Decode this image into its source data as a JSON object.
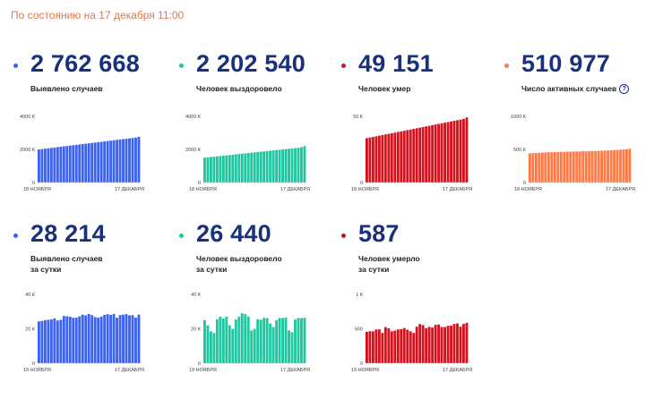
{
  "header": {
    "date_text": "По состоянию на 17 декабря 11:00"
  },
  "cards": [
    {
      "value": "2 762 668",
      "label_lines": [
        "Выявлено случаев"
      ],
      "color": "#3b63f0",
      "show_info": false,
      "chart_data": {
        "type": "bar",
        "y_ticks": [
          "4000 К",
          "2000 К",
          "0"
        ],
        "ylim": [
          0,
          4000
        ],
        "x_start_label": "18 НОЯБРЯ",
        "x_end_label": "17 ДЕКАБРЯ",
        "values": [
          2000,
          2023,
          2046,
          2069,
          2092,
          2115,
          2138,
          2161,
          2184,
          2207,
          2230,
          2253,
          2276,
          2299,
          2322,
          2345,
          2368,
          2391,
          2414,
          2437,
          2460,
          2483,
          2506,
          2529,
          2552,
          2575,
          2598,
          2621,
          2644,
          2667,
          2690,
          2713,
          2763
        ]
      }
    },
    {
      "value": "2 202 540",
      "label_lines": [
        "Человек выздоровело"
      ],
      "color": "#1fc7a0",
      "show_info": false,
      "chart_data": {
        "type": "bar",
        "y_ticks": [
          "4000 К",
          "2000 К",
          "0"
        ],
        "ylim": [
          0,
          4000
        ],
        "x_start_label": "18 НОЯБРЯ",
        "x_end_label": "17 ДЕКАБРЯ",
        "values": [
          1500,
          1520,
          1540,
          1560,
          1580,
          1600,
          1620,
          1640,
          1660,
          1680,
          1700,
          1720,
          1740,
          1760,
          1780,
          1800,
          1820,
          1840,
          1860,
          1880,
          1900,
          1920,
          1940,
          1960,
          1980,
          2000,
          2020,
          2040,
          2060,
          2080,
          2100,
          2130,
          2203
        ]
      }
    },
    {
      "value": "49 151",
      "label_lines": [
        "Человек умер"
      ],
      "color": "#d8121d",
      "show_info": false,
      "chart_data": {
        "type": "bar",
        "y_ticks": [
          "50 К",
          "0"
        ],
        "ylim": [
          0,
          50
        ],
        "x_start_label": "18 НОЯБРЯ",
        "x_end_label": "17 ДЕКАБРЯ",
        "values": [
          33.5,
          34,
          34.4,
          34.9,
          35.4,
          35.8,
          36.3,
          36.8,
          37.2,
          37.7,
          38.2,
          38.6,
          39.1,
          39.6,
          40,
          40.5,
          41,
          41.4,
          41.9,
          42.4,
          42.8,
          43.3,
          43.8,
          44.2,
          44.7,
          45.2,
          45.6,
          46.1,
          46.6,
          47,
          47.5,
          48,
          49.2
        ]
      }
    },
    {
      "value": "510 977",
      "label_lines": [
        "Число активных случаев"
      ],
      "color": "#ff7a45",
      "show_info": true,
      "info_icon": "question-icon",
      "chart_data": {
        "type": "bar",
        "y_ticks": [
          "1000 К",
          "500 К",
          "0"
        ],
        "ylim": [
          0,
          1000
        ],
        "x_start_label": "18 НОЯБРЯ",
        "x_end_label": "17 ДЕКАБРЯ",
        "values": [
          440,
          445,
          448,
          450,
          452,
          455,
          457,
          458,
          460,
          462,
          463,
          464,
          465,
          466,
          468,
          469,
          470,
          471,
          472,
          474,
          475,
          476,
          478,
          480,
          482,
          484,
          486,
          489,
          492,
          496,
          500,
          505,
          511
        ]
      }
    },
    {
      "value": "28 214",
      "label_lines": [
        "Выявлено случаев",
        "за сутки"
      ],
      "color": "#3b63f0",
      "show_info": false,
      "chart_data": {
        "type": "bar",
        "y_ticks": [
          "40 К",
          "20 К",
          "0"
        ],
        "ylim": [
          0,
          40
        ],
        "x_start_label": "19 НОЯБРЯ",
        "x_end_label": "17 ДЕКАБРЯ",
        "values": [
          24.3,
          24.6,
          25,
          25.2,
          25.4,
          26,
          24.8,
          25.2,
          27.4,
          27.3,
          27,
          26.4,
          26.5,
          27.2,
          28.2,
          27.8,
          28.6,
          27.9,
          26.8,
          26.5,
          27.1,
          28.1,
          28.5,
          28.1,
          28.6,
          26.4,
          27.9,
          28.2,
          28.5,
          27.8,
          27.9,
          26.5,
          28.2
        ]
      }
    },
    {
      "value": "26 440",
      "label_lines": [
        "Человек выздоровело",
        "за сутки"
      ],
      "color": "#1fc7a0",
      "show_info": false,
      "chart_data": {
        "type": "bar",
        "y_ticks": [
          "40 К",
          "20 К",
          "0"
        ],
        "ylim": [
          0,
          40
        ],
        "x_start_label": "19 НОЯБРЯ",
        "x_end_label": "17 ДЕКАБРЯ",
        "values": [
          25,
          22,
          18.5,
          17.5,
          25.5,
          27,
          26,
          27,
          22,
          20,
          25.5,
          27,
          29,
          28.5,
          27,
          19,
          20,
          25.5,
          25.3,
          26.3,
          26.2,
          23,
          21,
          25,
          26.3,
          26.2,
          26.5,
          19,
          18,
          25.4,
          26.3,
          26.2,
          26.4
        ]
      }
    },
    {
      "value": "587",
      "label_lines": [
        "Человек умерло",
        "за сутки"
      ],
      "color": "#d8121d",
      "show_info": false,
      "chart_data": {
        "type": "bar",
        "y_ticks": [
          "1 К",
          "500",
          "0"
        ],
        "ylim": [
          0,
          1000
        ],
        "x_start_label": "19 НОЯБРЯ",
        "x_end_label": "17 ДЕКАБРЯ",
        "values": [
          456,
          465,
          463,
          490,
          491,
          440,
          524,
          507,
          464,
          473,
          491,
          496,
          510,
          487,
          463,
          439,
          530,
          568,
          554,
          510,
          527,
          518,
          557,
          561,
          526,
          526,
          543,
          547,
          569,
          578,
          531,
          570,
          587
        ]
      }
    }
  ]
}
